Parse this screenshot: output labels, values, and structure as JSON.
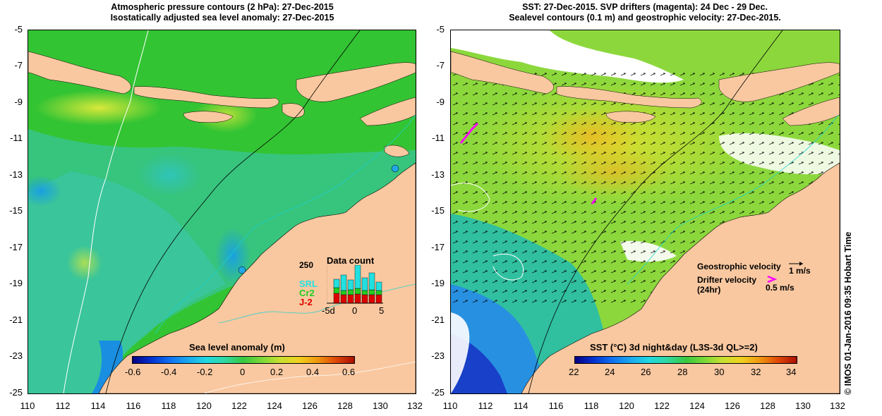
{
  "left_panel": {
    "title_line1": "Atmospheric pressure contours (2 hPa): 27-Dec-2015",
    "title_line2": "Isostatically adjusted sea level anomaly: 27-Dec-2015",
    "x_ticks": [
      "110",
      "112",
      "114",
      "116",
      "118",
      "120",
      "122",
      "124",
      "126",
      "128",
      "130",
      "132"
    ],
    "y_ticks": [
      "-5",
      "-7",
      "-9",
      "-11",
      "-13",
      "-15",
      "-17",
      "-19",
      "-21",
      "-23",
      "-25"
    ],
    "colorbar": {
      "title": "Sea level anomaly (m)",
      "ticks": [
        "-0.6",
        "-0.4",
        "-0.2",
        "0",
        "0.2",
        "0.4",
        "0.6"
      ],
      "range": [
        -0.6,
        0.6
      ]
    },
    "data_count": {
      "title": "Data count",
      "max_label": "250",
      "x_ticks": [
        "-5d",
        "0",
        "5"
      ],
      "series": [
        {
          "name": "SRL",
          "color": "#22e0e0"
        },
        {
          "name": "Cr2",
          "color": "#22cc22"
        },
        {
          "name": "J-2",
          "color": "#dd0000"
        }
      ]
    }
  },
  "right_panel": {
    "title_line1": "SST: 27-Dec-2015. SVP drifters (magenta): 24 Dec - 29 Dec.",
    "title_line2": "Sealevel contours (0.1 m) and geostrophic velocity: 27-Dec-2015.",
    "x_ticks": [
      "110",
      "112",
      "114",
      "116",
      "118",
      "120",
      "122",
      "124",
      "126",
      "128",
      "130",
      "132"
    ],
    "y_ticks": [
      "-5",
      "-7",
      "-9",
      "-11",
      "-13",
      "-15",
      "-17",
      "-19",
      "-21",
      "-23",
      "-25"
    ],
    "colorbar": {
      "title": "SST (°C) 3d night&day (L3S-3d QL>=2)",
      "ticks": [
        "22",
        "24",
        "26",
        "28",
        "30",
        "32",
        "34"
      ],
      "range": [
        22,
        34
      ]
    },
    "legend": {
      "geostrophic_label": "Geostrophic velocity",
      "geostrophic_scale": "1 m/s",
      "drifter_label_line1": "Drifter velocity",
      "drifter_label_line2": "(24hr)",
      "drifter_scale": "0.5 m/s"
    }
  },
  "credit": "© IMOS 01-Jan-2016 09:35 Hobart Time",
  "colors": {
    "land": "#f9c8a0",
    "sea_green": "#33c433",
    "sea_teal": "#3ec8b0",
    "drifter": "#ff00ff"
  }
}
